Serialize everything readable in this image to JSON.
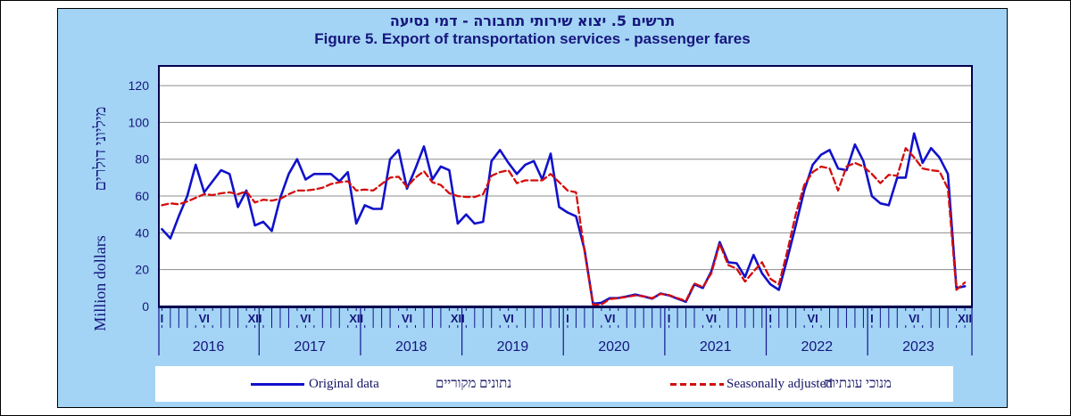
{
  "titles": {
    "hebrew": "תרשים 5. יצוא שירותי תחבורה - דמי נסיעה",
    "english": "Figure 5. Export of transportation services - passenger fares"
  },
  "y_axis": {
    "title_hebrew": "מיליוני  דולרים",
    "title_english": "Million dollars",
    "ticks": [
      0,
      20,
      40,
      60,
      80,
      100,
      120
    ]
  },
  "x_axis": {
    "years": [
      "2016",
      "2017",
      "2018",
      "2019",
      "2020",
      "2021",
      "2022",
      "2023"
    ],
    "roman_labels": [
      {
        "m": 0,
        "t": "I"
      },
      {
        "m": 5,
        "t": "VI"
      },
      {
        "m": 11,
        "t": "XII"
      },
      {
        "m": 17,
        "t": "VI"
      },
      {
        "m": 23,
        "t": "XII"
      },
      {
        "m": 29,
        "t": "VI"
      },
      {
        "m": 35,
        "t": "XII"
      },
      {
        "m": 41,
        "t": "VI"
      },
      {
        "m": 48,
        "t": "I"
      },
      {
        "m": 53,
        "t": "VI"
      },
      {
        "m": 60,
        "t": "I"
      },
      {
        "m": 65,
        "t": "VI"
      },
      {
        "m": 72,
        "t": "I"
      },
      {
        "m": 77,
        "t": "VI"
      },
      {
        "m": 84,
        "t": "I"
      },
      {
        "m": 89,
        "t": "VI"
      },
      {
        "m": 95,
        "t": "XII"
      }
    ]
  },
  "legend": {
    "original_en": "Original data",
    "original_he": "נתונים מקוריים",
    "adjusted_en": "Seasonally adjusted",
    "adjusted_he": "מנוכי עונתיות"
  },
  "colors": {
    "panel_bg": "#a3d4f5",
    "text_navy": "#16167d",
    "axis_navy": "#00004f",
    "tick_navy": "#14148c",
    "gridline": "#8c8c8c",
    "original_line": "#1111cb",
    "adjusted_line": "#d40d0d"
  },
  "chart_data": {
    "type": "line",
    "title": "Figure 5. Export of transportation services - passenger fares",
    "x_unit": "month",
    "x_start": "2016-01",
    "x_end": "2023-12",
    "ylabel": "Million dollars",
    "ylim": [
      0,
      130.7
    ],
    "yticks": [
      0,
      20,
      40,
      60,
      80,
      100,
      120
    ],
    "grid": "horizontal",
    "legend_position": "bottom",
    "series": [
      {
        "name": "Original data",
        "name_he": "נתונים מקוריים",
        "style": "solid",
        "color": "#1111cb",
        "values": [
          42,
          37,
          49,
          60,
          77,
          62,
          68,
          74,
          72,
          54,
          63,
          44,
          46,
          41,
          59,
          72,
          80,
          69,
          72,
          72,
          72,
          68,
          73,
          45,
          55,
          53,
          53,
          80,
          85,
          64,
          75,
          87,
          69,
          76,
          74,
          45,
          50,
          45,
          46,
          79,
          85,
          78,
          72,
          77,
          79,
          69,
          83,
          54,
          51,
          49,
          31,
          1.5,
          2,
          4.5,
          4.6,
          5.4,
          6.5,
          5.4,
          4.2,
          7,
          6,
          4.2,
          2.5,
          12,
          10,
          19,
          35,
          24,
          23.5,
          16,
          28,
          18,
          12,
          9,
          26,
          44,
          63,
          77,
          82.5,
          85,
          75,
          74,
          88,
          79,
          60,
          56,
          55,
          70,
          70,
          94,
          78,
          86,
          81,
          72,
          10,
          11
        ]
      },
      {
        "name": "Seasonally adjusted",
        "name_he": "מנוכי עונתיות",
        "style": "dashed",
        "color": "#d40d0d",
        "values": [
          55,
          56,
          55.5,
          57,
          59,
          61,
          60.5,
          61.5,
          62,
          61,
          62.5,
          56.5,
          58,
          57.5,
          58.5,
          61,
          63,
          63,
          63.5,
          64.5,
          66.5,
          67.5,
          68,
          63,
          63.5,
          63,
          66.5,
          70,
          70.5,
          65,
          70,
          73.5,
          67.5,
          66,
          61.5,
          60,
          59.5,
          59.5,
          61,
          71,
          73,
          74,
          67,
          68.5,
          68.5,
          68.5,
          72,
          67.5,
          63,
          62,
          30,
          1,
          1,
          4,
          4.5,
          5.2,
          6,
          5.5,
          4.5,
          6.8,
          6.2,
          4.5,
          3,
          12.5,
          10.5,
          18,
          34,
          22.5,
          20.5,
          13.5,
          19,
          24,
          15,
          12,
          30,
          50,
          66,
          73,
          76,
          75,
          63,
          76,
          78,
          76,
          72,
          67,
          71.5,
          71,
          86,
          81,
          75,
          74,
          73.5,
          64,
          9,
          13
        ]
      }
    ]
  }
}
